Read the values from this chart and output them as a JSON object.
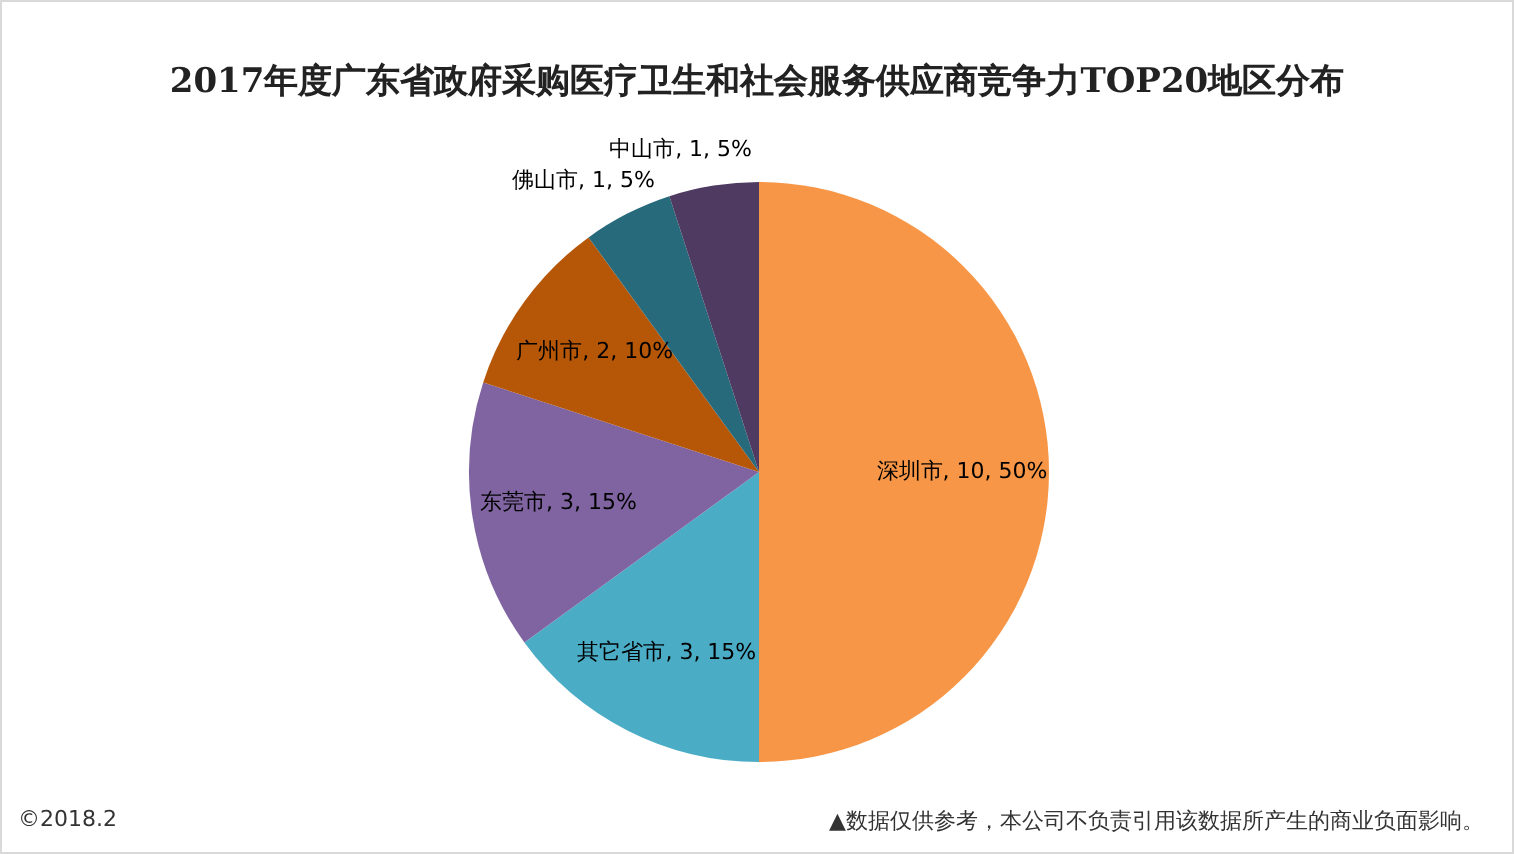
{
  "chart_data": {
    "type": "pie",
    "title": "2017年度广东省政府采购医疗卫生和社会服务供应商竞争力TOP20地区分布",
    "categories": [
      "深圳市",
      "其它省市",
      "东莞市",
      "广州市",
      "佛山市",
      "中山市"
    ],
    "values": [
      50,
      15,
      15,
      10,
      5,
      5
    ],
    "colors": [
      "#f79646",
      "#4bacc6",
      "#8064a2",
      "#b65708",
      "#276a7c",
      "#4f3b62"
    ],
    "value_labels": [
      "10, 50%",
      "3, 15%",
      "3, 15%",
      "2, 10%",
      "1, 5%",
      "1, 5%"
    ],
    "legend": false,
    "annotations": [
      "©2018.2",
      "▲数据仅供参考，本公司不负责引用该数据所产生的商业负面影响。"
    ]
  }
}
